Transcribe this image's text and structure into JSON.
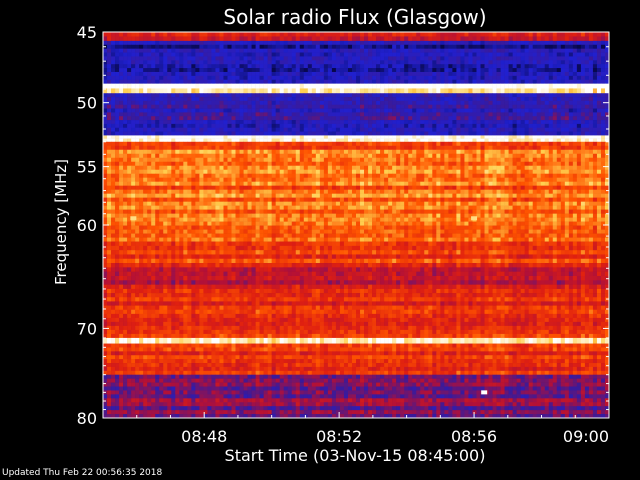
{
  "chart_data": {
    "type": "heatmap",
    "title": "Solar radio Flux (Glasgow)",
    "xlabel": "Start Time (03-Nov-15 08:45:00)",
    "ylabel": "Frequency [MHz]",
    "x_range_minutes": [
      0,
      15
    ],
    "x_ticks": [
      {
        "label": "08:48",
        "value": 3
      },
      {
        "label": "08:52",
        "value": 7
      },
      {
        "label": "08:56",
        "value": 11
      },
      {
        "label": "09:00",
        "value": 15
      }
    ],
    "y_range": [
      45,
      80
    ],
    "y_scale": "log",
    "y_ticks": [
      45,
      50,
      55,
      60,
      70,
      80
    ],
    "colormap": [
      "#08084a",
      "#2020d0",
      "#3a1a9a",
      "#b0103a",
      "#e02010",
      "#ff5500",
      "#ffd050",
      "#ffffff"
    ],
    "bands": [
      {
        "from": 45.0,
        "to": 45.6,
        "level": 0.55
      },
      {
        "from": 45.6,
        "to": 48.6,
        "level": 0.12
      },
      {
        "from": 48.6,
        "to": 49.3,
        "level": 0.98
      },
      {
        "from": 49.3,
        "to": 52.5,
        "level": 0.2
      },
      {
        "from": 52.5,
        "to": 53.0,
        "level": 0.95
      },
      {
        "from": 53.0,
        "to": 61.5,
        "level": 0.72
      },
      {
        "from": 61.5,
        "to": 63.5,
        "level": 0.62
      },
      {
        "from": 63.5,
        "to": 66.0,
        "level": 0.5
      },
      {
        "from": 66.0,
        "to": 68.5,
        "level": 0.58
      },
      {
        "from": 68.5,
        "to": 71.0,
        "level": 0.6
      },
      {
        "from": 71.0,
        "to": 71.6,
        "level": 0.95
      },
      {
        "from": 71.6,
        "to": 75.0,
        "level": 0.62
      },
      {
        "from": 75.0,
        "to": 80.0,
        "level": 0.38
      }
    ],
    "annotations": [
      {
        "minute": 0.9,
        "freq": 59.4,
        "level": 0.9
      },
      {
        "minute": 11.0,
        "freq": 59.4,
        "level": 0.9
      },
      {
        "minute": 11.3,
        "freq": 77.0,
        "level": 1.0
      }
    ]
  },
  "footer": "Updated Thu Feb 22 00:56:35 2018"
}
